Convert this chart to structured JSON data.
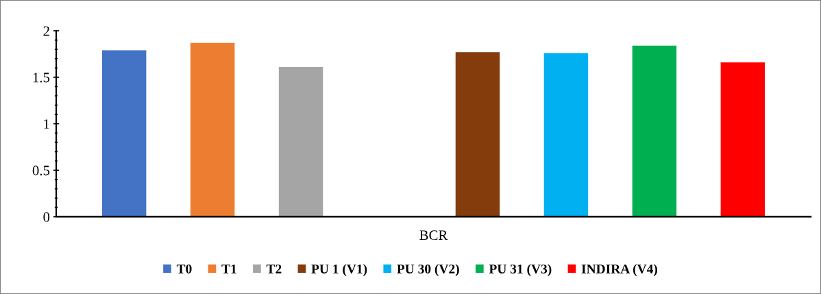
{
  "chart_data": {
    "type": "bar",
    "categories": [
      "BCR"
    ],
    "series": [
      {
        "name": "T0",
        "color": "#4472c4",
        "values": [
          1.79
        ]
      },
      {
        "name": "T1",
        "color": "#ed7d31",
        "values": [
          1.87
        ]
      },
      {
        "name": "T2",
        "color": "#a5a5a5",
        "values": [
          1.61
        ]
      },
      {
        "values": [
          null
        ]
      },
      {
        "name": "PU 1 (V1)",
        "color": "#843c0c",
        "values": [
          1.77
        ]
      },
      {
        "name": "PU 30 (V2)",
        "color": "#00b0f0",
        "values": [
          1.76
        ]
      },
      {
        "name": "PU 31 (V3)",
        "color": "#00b050",
        "values": [
          1.84
        ]
      },
      {
        "name": "INDIRA (V4)",
        "color": "#ff0000",
        "values": [
          1.66
        ]
      }
    ],
    "ylim": [
      0,
      2
    ],
    "yticks": [
      0,
      {
        "value": 0.1,
        "label": null
      },
      {
        "value": 0.2,
        "label": null
      },
      {
        "value": 0.3,
        "label": null
      },
      {
        "value": 0.4,
        "label": null
      },
      0.5,
      {
        "value": 0.6,
        "label": null
      },
      {
        "value": 0.7,
        "label": null
      },
      {
        "value": 0.8,
        "label": null
      },
      {
        "value": 0.9,
        "label": null
      },
      1,
      {
        "value": 1.1,
        "label": null
      },
      {
        "value": 1.2,
        "label": null
      },
      {
        "value": 1.3,
        "label": null
      },
      {
        "value": 1.4,
        "label": null
      },
      1.5,
      {
        "value": 1.6,
        "label": null
      },
      {
        "value": 1.7,
        "label": null
      },
      {
        "value": 1.8,
        "label": null
      },
      {
        "value": 1.9,
        "label": null
      },
      2
    ],
    "grid": false,
    "legend": "bottom"
  }
}
